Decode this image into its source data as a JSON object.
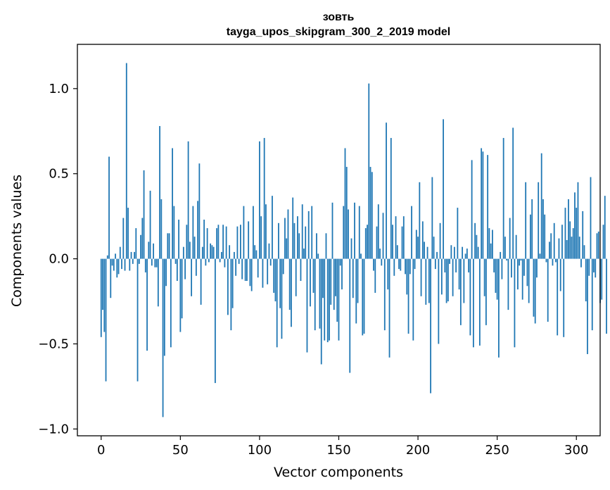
{
  "chart_data": {
    "type": "bar",
    "title": "зовть",
    "subtitle": "tayga_upos_skipgram_300_2_2019 model",
    "xlabel": "Vector components",
    "ylabel": "Components values",
    "xlim": [
      -15,
      315
    ],
    "ylim": [
      -1.04,
      1.26
    ],
    "x_ticks": [
      0,
      50,
      100,
      150,
      200,
      250,
      300
    ],
    "y_ticks": [
      -1.0,
      -0.5,
      0.0,
      0.5,
      1.0
    ],
    "y_tick_labels": [
      "−1.0",
      "−0.5",
      "0.0",
      "0.5",
      "1.0"
    ],
    "bar_color": "#1f77b4",
    "grid": false,
    "values": [
      -0.46,
      -0.3,
      -0.43,
      -0.72,
      0.02,
      0.6,
      -0.23,
      -0.04,
      -0.07,
      0.03,
      -0.11,
      -0.09,
      0.07,
      -0.06,
      0.24,
      -0.07,
      1.15,
      0.3,
      -0.07,
      0.04,
      -0.03,
      0.04,
      0.18,
      -0.72,
      -0.03,
      0.14,
      0.24,
      0.52,
      -0.08,
      -0.54,
      0.1,
      0.4,
      -0.04,
      0.09,
      -0.05,
      -0.05,
      -0.28,
      0.78,
      0.35,
      -0.93,
      -0.57,
      -0.16,
      0.15,
      0.15,
      -0.52,
      0.65,
      0.31,
      -0.03,
      -0.13,
      0.23,
      -0.43,
      -0.35,
      0.07,
      -0.12,
      0.2,
      0.69,
      0.1,
      -0.22,
      0.31,
      0.13,
      -0.1,
      0.34,
      0.56,
      -0.27,
      0.07,
      0.23,
      -0.04,
      0.18,
      -0.02,
      0.09,
      0.08,
      0.07,
      -0.73,
      0.18,
      0.2,
      -0.02,
      0.04,
      0.2,
      -0.05,
      0.19,
      -0.33,
      0.08,
      -0.42,
      -0.29,
      0.04,
      -0.1,
      0.19,
      -0.03,
      0.2,
      -0.12,
      0.31,
      -0.13,
      -0.13,
      0.22,
      -0.16,
      -0.19,
      0.31,
      0.08,
      0.05,
      -0.11,
      0.69,
      0.25,
      -0.17,
      0.71,
      0.32,
      -0.15,
      0.09,
      -0.04,
      0.37,
      -0.2,
      -0.25,
      -0.52,
      0.21,
      -0.29,
      -0.47,
      -0.09,
      0.24,
      0.12,
      0.29,
      -0.3,
      -0.4,
      0.36,
      0.21,
      -0.22,
      0.25,
      0.15,
      -0.13,
      0.32,
      0.06,
      0.19,
      -0.55,
      0.28,
      -0.28,
      0.31,
      -0.2,
      -0.42,
      0.15,
      0.03,
      -0.41,
      -0.62,
      -0.23,
      -0.48,
      0.15,
      -0.49,
      -0.48,
      -0.27,
      0.33,
      -0.3,
      -0.22,
      -0.37,
      -0.48,
      -0.04,
      -0.18,
      0.31,
      0.65,
      0.54,
      0.29,
      -0.67,
      0.12,
      -0.23,
      0.33,
      -0.38,
      -0.26,
      0.31,
      0.03,
      -0.45,
      -0.44,
      0.18,
      0.2,
      1.03,
      0.54,
      0.51,
      -0.07,
      -0.2,
      0.19,
      0.32,
      0.06,
      -0.04,
      0.27,
      -0.42,
      0.8,
      -0.18,
      -0.58,
      0.71,
      0.2,
      -0.1,
      0.25,
      0.08,
      -0.06,
      -0.07,
      0.19,
      0.25,
      -0.09,
      -0.21,
      -0.44,
      -0.09,
      0.31,
      -0.48,
      -0.06,
      0.17,
      0.13,
      0.45,
      -0.22,
      0.22,
      0.1,
      -0.27,
      0.07,
      -0.26,
      -0.79,
      0.48,
      0.13,
      -0.06,
      0.04,
      -0.5,
      0.21,
      -0.21,
      0.82,
      -0.08,
      -0.26,
      -0.25,
      -0.03,
      0.08,
      -0.22,
      0.07,
      -0.08,
      0.3,
      -0.18,
      -0.39,
      0.07,
      -0.26,
      0.03,
      0.06,
      -0.08,
      -0.45,
      0.58,
      -0.52,
      0.21,
      0.14,
      0.07,
      -0.51,
      0.65,
      0.63,
      -0.22,
      -0.39,
      0.61,
      0.18,
      0.09,
      0.17,
      -0.08,
      -0.2,
      -0.24,
      -0.58,
      0.04,
      -0.12,
      0.71,
      0.13,
      -0.01,
      -0.3,
      0.24,
      -0.11,
      0.77,
      -0.52,
      0.14,
      -0.18,
      -0.04,
      -0.01,
      -0.24,
      -0.1,
      0.45,
      -0.16,
      -0.26,
      0.26,
      0.35,
      -0.34,
      -0.38,
      -0.11,
      0.45,
      0.03,
      0.62,
      0.35,
      0.26,
      -0.02,
      -0.37,
      0.1,
      0.15,
      -0.04,
      0.21,
      -0.02,
      -0.45,
      0.12,
      -0.19,
      0.2,
      -0.46,
      0.3,
      0.11,
      0.35,
      0.22,
      0.13,
      0.18,
      0.39,
      0.3,
      0.45,
      0.13,
      -0.05,
      0.28,
      0.08,
      -0.25,
      -0.56,
      -0.1,
      0.48,
      -0.42,
      -0.08,
      -0.11,
      0.15,
      0.16,
      -0.26,
      -0.24,
      0.2,
      0.37,
      -0.44
    ]
  }
}
